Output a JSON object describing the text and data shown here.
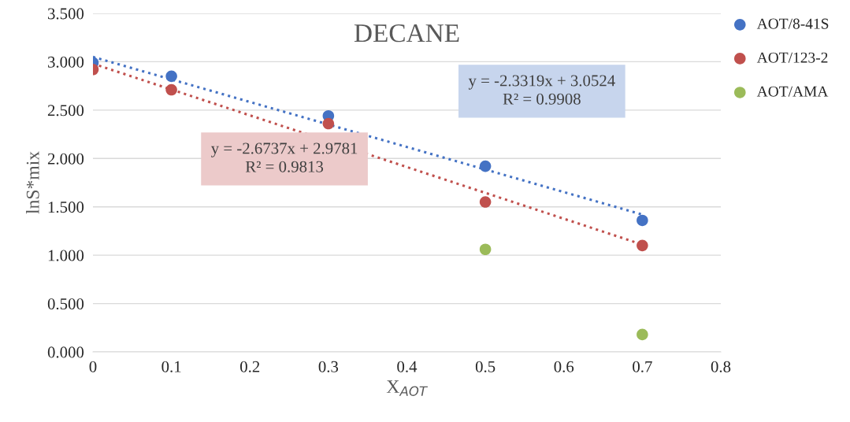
{
  "chart_data": {
    "type": "scatter",
    "title": "DECANE",
    "xlabel": "X$_{AOT}$",
    "ylabel": "lnS*mix",
    "series": [
      {
        "name": "AOT/8-41S",
        "color": "#4472c4",
        "x": [
          0,
          0.1,
          0.3,
          0.5,
          0.7
        ],
        "values": [
          2.99,
          2.85,
          2.44,
          1.92,
          1.36
        ]
      },
      {
        "name": "AOT/123-2",
        "color": "#c0504d",
        "x": [
          0,
          0.1,
          0.3,
          0.5,
          0.7
        ],
        "values": [
          2.92,
          2.71,
          2.36,
          1.55,
          1.1
        ]
      },
      {
        "name": "AOT/AMA",
        "color": "#9bbb59",
        "x": [
          0.5,
          0.7
        ],
        "values": [
          1.06,
          0.18
        ]
      },
      {
        "type": "line",
        "color": "#4472c4",
        "x": [
          0,
          0.7
        ],
        "values": [
          3.05,
          1.42
        ],
        "line_style": "dotted",
        "marker": "none"
      },
      {
        "type": "line",
        "color": "#c0504d",
        "x": [
          0,
          0.7
        ],
        "values": [
          2.98,
          1.11
        ],
        "line_style": "dotted",
        "marker": "none"
      }
    ],
    "annotations": [
      "y = -2.3319x + 3.0524\nR² = 0.9908",
      "y = -2.6737x + 2.9781\nR² = 0.9813"
    ],
    "xlim": [
      0,
      0.8
    ],
    "xticks": [
      0,
      0.1,
      0.2,
      0.3,
      0.4,
      0.5,
      0.6,
      0.7,
      0.8
    ],
    "ylim": [
      0,
      3.5
    ],
    "yticks": [
      {
        "value": 0,
        "label": "0.000"
      },
      {
        "value": 0.5,
        "label": "0.500"
      },
      {
        "value": 1,
        "label": "1.000"
      },
      {
        "value": 1.5,
        "label": "1.500"
      },
      {
        "value": 2,
        "label": "2.000"
      },
      {
        "value": 2.5,
        "label": "2.500"
      },
      {
        "value": 3,
        "label": "3.000"
      },
      {
        "value": 3.5,
        "label": "3.500"
      }
    ],
    "grid": "y",
    "legend": "top right",
    "marker": "circle"
  }
}
